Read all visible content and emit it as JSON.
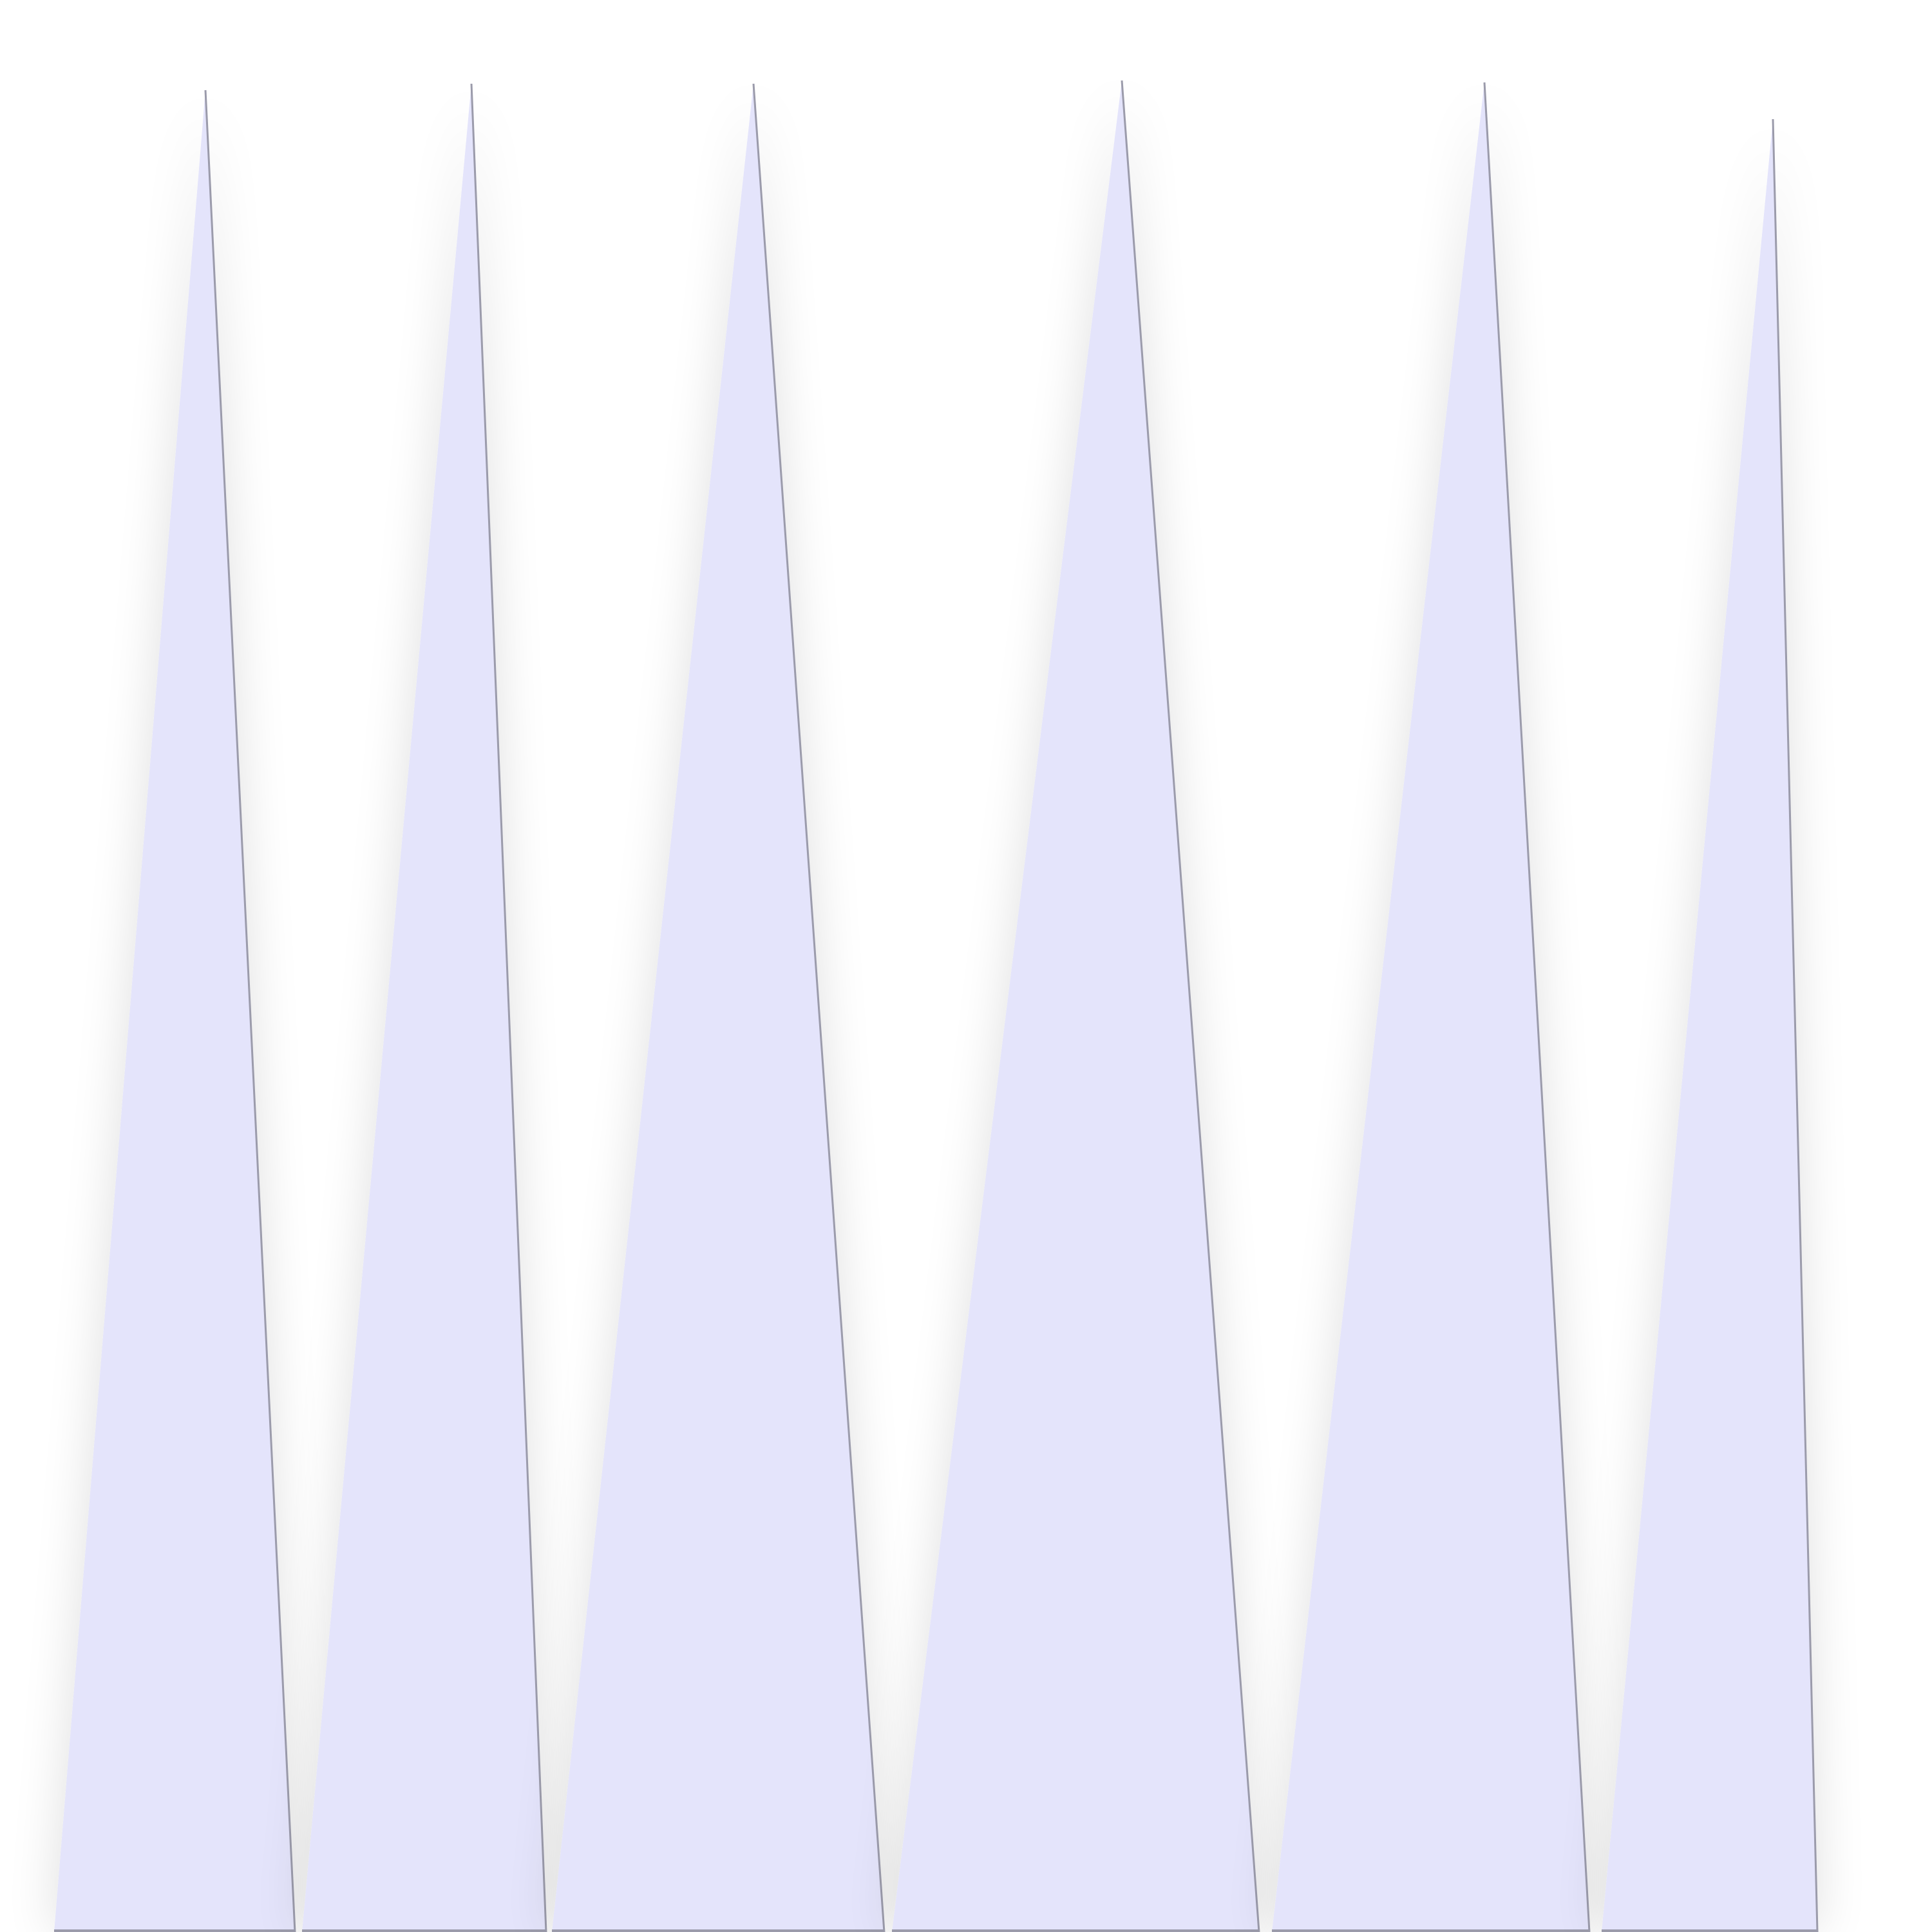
{
  "colors": {
    "background": "#ffffff",
    "triangle_fill": "#e4e4fb",
    "edge_stroke": "#9b9bab",
    "shadow": "#000000"
  },
  "shapes": {
    "count": 6
  }
}
